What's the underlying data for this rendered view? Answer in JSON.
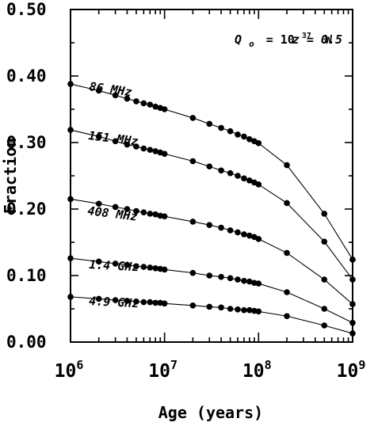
{
  "chart_data": {
    "type": "line",
    "xlabel": "Age (years)",
    "ylabel": "Fraction",
    "x_scale": "log",
    "xlim": [
      1000000,
      1000000000
    ],
    "ylim": [
      0,
      0.5
    ],
    "x_ticks": [
      "10^6",
      "10^7",
      "10^8",
      "10^9"
    ],
    "y_tick_labels": [
      "0.00",
      "0.10",
      "0.20",
      "0.30",
      "0.40",
      "0.50"
    ],
    "annotation": {
      "q_symbol": "Q",
      "q_subscript": "o",
      "q_eq": "= 10",
      "q_exp": "37",
      "q_unit": "W",
      "z_text": "z = 0.5"
    },
    "x": [
      1000000,
      2000000,
      3000000,
      4000000,
      5000000,
      6000000,
      7000000,
      8000000,
      9000000,
      10000000,
      20000000,
      30000000,
      40000000,
      50000000,
      60000000,
      70000000,
      80000000,
      90000000,
      100000000,
      200000000,
      500000000,
      1000000000
    ],
    "series": [
      {
        "name": "86 MHz",
        "values": [
          0.388,
          0.378,
          0.371,
          0.366,
          0.362,
          0.359,
          0.357,
          0.354,
          0.352,
          0.35,
          0.337,
          0.328,
          0.322,
          0.317,
          0.312,
          0.309,
          0.305,
          0.302,
          0.299,
          0.266,
          0.193,
          0.124
        ]
      },
      {
        "name": "151 MHz",
        "values": [
          0.319,
          0.309,
          0.302,
          0.297,
          0.294,
          0.291,
          0.289,
          0.287,
          0.285,
          0.283,
          0.272,
          0.264,
          0.258,
          0.254,
          0.25,
          0.246,
          0.243,
          0.24,
          0.237,
          0.209,
          0.151,
          0.094
        ]
      },
      {
        "name": "408 MHz",
        "values": [
          0.215,
          0.208,
          0.203,
          0.2,
          0.197,
          0.195,
          0.193,
          0.192,
          0.19,
          0.189,
          0.181,
          0.176,
          0.172,
          0.168,
          0.165,
          0.162,
          0.16,
          0.158,
          0.155,
          0.134,
          0.094,
          0.057
        ]
      },
      {
        "name": "1.4 GHz",
        "values": [
          0.126,
          0.121,
          0.118,
          0.116,
          0.114,
          0.113,
          0.112,
          0.111,
          0.11,
          0.109,
          0.104,
          0.1,
          0.098,
          0.096,
          0.094,
          0.092,
          0.091,
          0.089,
          0.088,
          0.075,
          0.05,
          0.029
        ]
      },
      {
        "name": "4.9 GHz",
        "values": [
          0.068,
          0.065,
          0.063,
          0.062,
          0.061,
          0.06,
          0.06,
          0.059,
          0.059,
          0.058,
          0.055,
          0.053,
          0.052,
          0.05,
          0.049,
          0.048,
          0.048,
          0.047,
          0.046,
          0.039,
          0.025,
          0.013
        ]
      }
    ],
    "grid": false,
    "legend": "inline labels above each curve"
  }
}
